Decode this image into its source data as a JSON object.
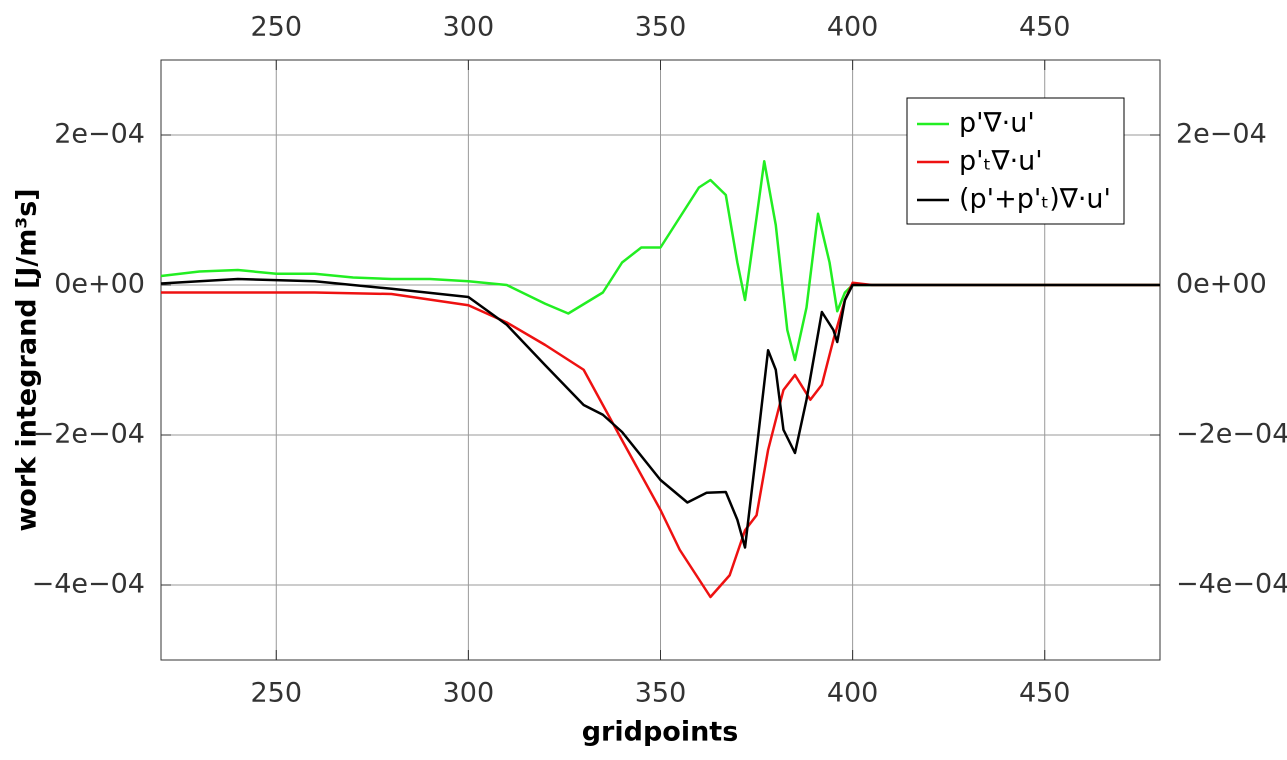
{
  "chart_data": {
    "type": "line",
    "xlabel": "gridpoints",
    "ylabel": "work integrand [J/m³s]",
    "xlim": [
      220,
      480
    ],
    "xticks": [
      250,
      300,
      350,
      400,
      450
    ],
    "ylim": [
      -0.0005,
      0.0003
    ],
    "yticks": [
      {
        "value": -0.0004,
        "label": "−4e−04"
      },
      {
        "value": -0.0002,
        "label": "−2e−04"
      },
      {
        "value": 0,
        "label": "0e+00"
      },
      {
        "value": 0.0002,
        "label": "2e−04"
      }
    ],
    "grid": true,
    "legend": "upper right",
    "series": [
      {
        "name": "p'∇·u'",
        "color": "#22ee22",
        "x": [
          220,
          230,
          240,
          250,
          260,
          270,
          280,
          290,
          300,
          310,
          320,
          326,
          335,
          340,
          345,
          350,
          355,
          360,
          363,
          367,
          370,
          372,
          375,
          377,
          380,
          383,
          385,
          388,
          391,
          394,
          396,
          398,
          400,
          410,
          480
        ],
        "values": [
          1.2e-05,
          1.8e-05,
          2e-05,
          1.5e-05,
          1.5e-05,
          1e-05,
          8e-06,
          8e-06,
          5e-06,
          0,
          -2.5e-05,
          -3.8e-05,
          -1e-05,
          3e-05,
          5e-05,
          5e-05,
          9e-05,
          0.00013,
          0.00014,
          0.00012,
          3e-05,
          -2e-05,
          9e-05,
          0.000165,
          8e-05,
          -6e-05,
          -0.0001,
          -3e-05,
          9.5e-05,
          3e-05,
          -3.5e-05,
          -1e-05,
          0,
          0,
          0
        ]
      },
      {
        "name": "p'ₜ∇·u'",
        "color": "#ee1111",
        "x": [
          220,
          260,
          280,
          300,
          310,
          320,
          330,
          340,
          350,
          355,
          363,
          368,
          372,
          375,
          378,
          382,
          385,
          389,
          392,
          395,
          398,
          400,
          405,
          480
        ],
        "values": [
          -1e-05,
          -1e-05,
          -1.2e-05,
          -2.7e-05,
          -5e-05,
          -8e-05,
          -0.000113,
          -0.000207,
          -0.0003,
          -0.000353,
          -0.000416,
          -0.000387,
          -0.000327,
          -0.000307,
          -0.00022,
          -0.00014,
          -0.00012,
          -0.000153,
          -0.000133,
          -7.3e-05,
          -2e-05,
          3e-06,
          0,
          0
        ]
      },
      {
        "name": "(p'+p'ₜ)∇·u'",
        "color": "#000000",
        "x": [
          220,
          240,
          260,
          280,
          300,
          310,
          320,
          330,
          335,
          340,
          350,
          357,
          362,
          367,
          370,
          372,
          375,
          378,
          380,
          382,
          385,
          388,
          392,
          395,
          396,
          398,
          400,
          480
        ],
        "values": [
          2e-06,
          8e-06,
          5e-06,
          -5e-06,
          -1.6e-05,
          -5.3e-05,
          -0.000107,
          -0.00016,
          -0.000173,
          -0.000196,
          -0.00026,
          -0.00029,
          -0.000277,
          -0.000276,
          -0.000313,
          -0.00035,
          -0.00022,
          -8.7e-05,
          -0.000113,
          -0.000193,
          -0.000224,
          -0.000153,
          -3.6e-05,
          -6e-05,
          -7.6e-05,
          -2e-05,
          0,
          0
        ]
      }
    ]
  }
}
